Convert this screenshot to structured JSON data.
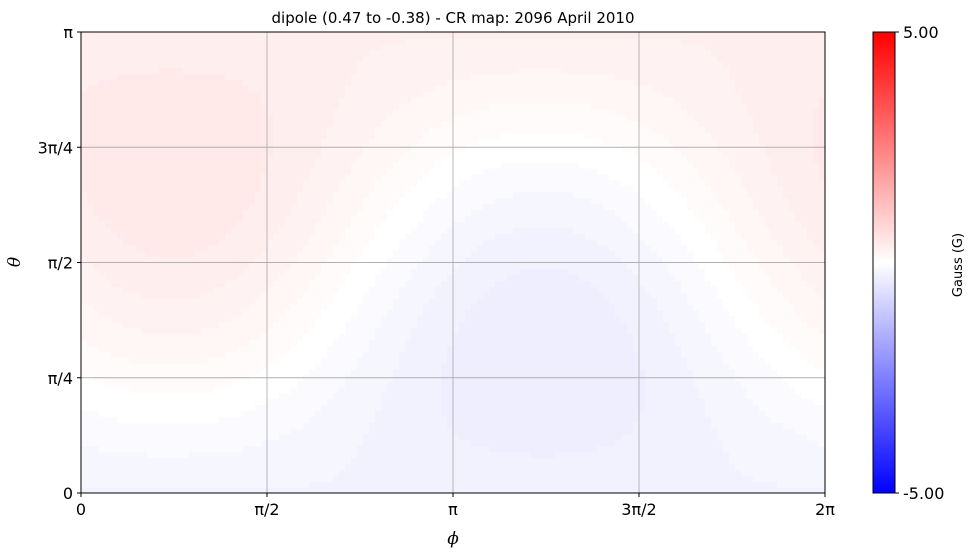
{
  "chart_data": {
    "type": "heatmap",
    "title": "dipole (0.47 to -0.38) - CR map: 2096 April 2010",
    "xlabel": "ϕ",
    "ylabel": "θ",
    "xlim": [
      0,
      6.2832
    ],
    "ylim": [
      0,
      3.1416
    ],
    "x_ticks": [
      {
        "value": 0,
        "label": "0"
      },
      {
        "value": 1.5708,
        "label": "π/2"
      },
      {
        "value": 3.1416,
        "label": "π"
      },
      {
        "value": 4.7124,
        "label": "3π/2"
      },
      {
        "value": 6.2832,
        "label": "2π"
      }
    ],
    "y_ticks": [
      {
        "value": 0,
        "label": "0"
      },
      {
        "value": 0.7854,
        "label": "π/4"
      },
      {
        "value": 1.5708,
        "label": "π/2"
      },
      {
        "value": 2.3562,
        "label": "3π/4"
      },
      {
        "value": 3.1416,
        "label": "π"
      }
    ],
    "grid": true,
    "field": {
      "description": "dipole",
      "max": 0.47,
      "min": -0.38
    },
    "colorbar": {
      "label": "Gauss (G)",
      "max": 5.0,
      "min": -5.0,
      "max_label": "5.00",
      "min_label": "-5.00",
      "colormap": "bwr",
      "negative_color": "#0000ff",
      "zero_color": "#ffffff",
      "positive_color": "#ff0000"
    }
  }
}
